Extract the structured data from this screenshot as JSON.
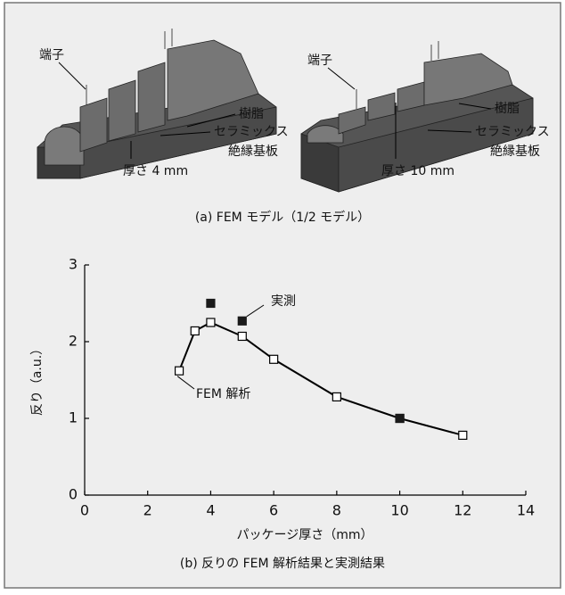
{
  "figure_a": {
    "caption": "(a) FEM モデル（1/2 モデル）",
    "left": {
      "terminal": "端子",
      "resin": "樹脂",
      "substrate": [
        "セラミックス",
        "絶縁基板"
      ],
      "thickness": "厚さ 4 mm"
    },
    "right": {
      "terminal": "端子",
      "resin": "樹脂",
      "substrate": [
        "セラミックス",
        "絶縁基板"
      ],
      "thickness": "厚さ 10 mm"
    }
  },
  "chart_data": {
    "type": "line",
    "caption": "(b) 反りの FEM 解析結果と実測結果",
    "x_label": "パッケージ厚さ（mm）",
    "y_label": "反り（a.u.）",
    "xlim": [
      0,
      14
    ],
    "xticks": [
      0,
      2,
      4,
      6,
      8,
      10,
      12,
      14
    ],
    "ylim": [
      0,
      3
    ],
    "yticks": [
      0,
      1,
      2,
      3
    ],
    "series": [
      {
        "name": "FEM 解析",
        "color": "#000000",
        "marker": "open",
        "line": true,
        "x": [
          3,
          3.5,
          4,
          5,
          6,
          8,
          10,
          12
        ],
        "values": [
          1.62,
          2.14,
          2.25,
          2.07,
          1.77,
          1.28,
          1.0,
          0.78
        ]
      },
      {
        "name": "実測",
        "color": "#1a1a1a",
        "marker": "filled",
        "line": false,
        "x": [
          4,
          5,
          10
        ],
        "values": [
          2.5,
          2.27,
          1.0
        ]
      }
    ]
  }
}
